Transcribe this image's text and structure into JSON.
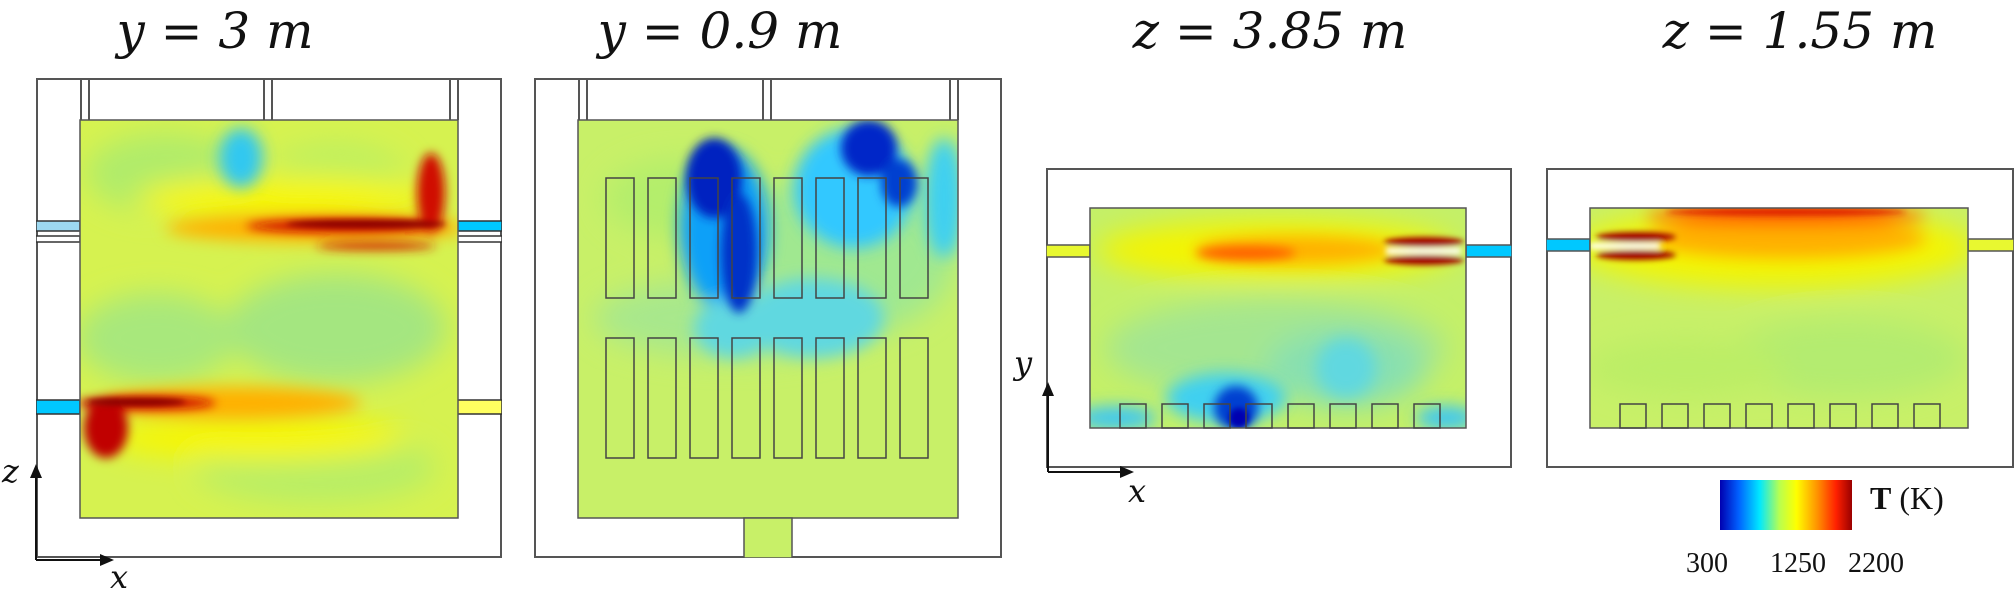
{
  "panels": [
    {
      "label": "y = 3 m"
    },
    {
      "label": "y = 0.9 m"
    },
    {
      "label": "z = 3.85 m"
    },
    {
      "label": "z = 1.55 m"
    }
  ],
  "axes": {
    "left": {
      "vertical": "z",
      "horizontal": "x"
    },
    "right": {
      "vertical": "y",
      "horizontal": "x"
    }
  },
  "colorbar": {
    "quantity": "T",
    "unit": "(K)",
    "ticks": [
      "300",
      "1250",
      "2200"
    ],
    "colors": [
      "#0000b0",
      "#0060ff",
      "#00e8ff",
      "#b8ff50",
      "#ffff00",
      "#ff9000",
      "#ff2000",
      "#9a0000"
    ]
  },
  "colors": {
    "background_field": "#c8f06a",
    "hot": "#a00000",
    "cold": "#0000c0",
    "outline": "#555555"
  }
}
